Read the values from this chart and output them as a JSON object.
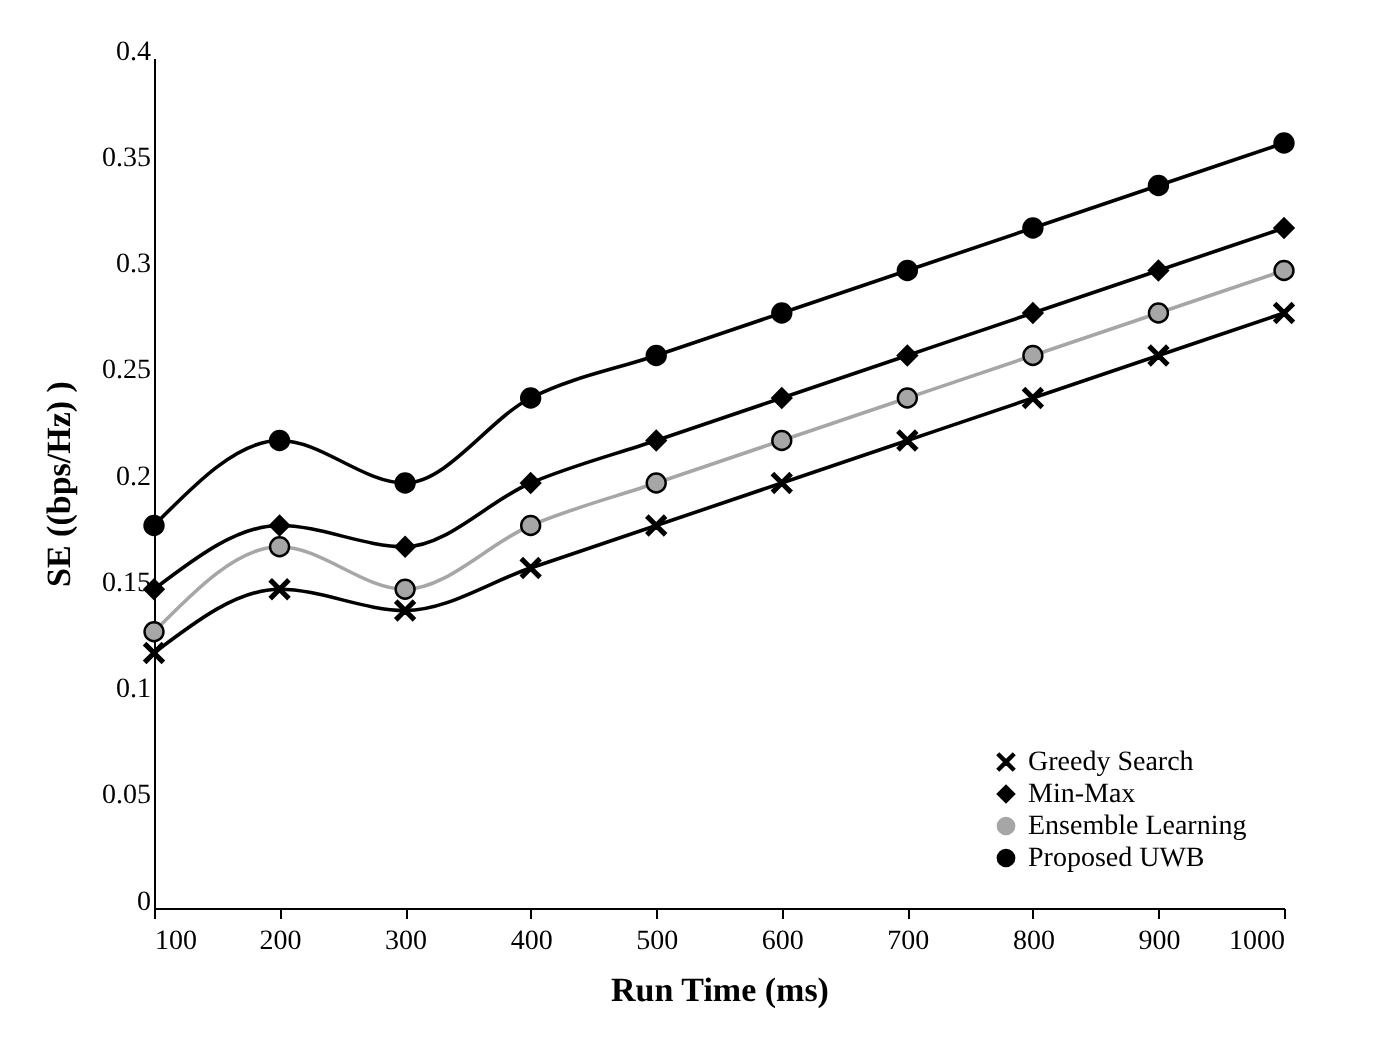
{
  "chart_data": {
    "type": "line",
    "xlabel": "Run Time (ms)",
    "ylabel": "SE ((bps/Hz) )",
    "categories": [
      "100",
      "200",
      "300",
      "400",
      "500",
      "600",
      "700",
      "800",
      "900",
      "1000"
    ],
    "series": [
      {
        "name": "Greedy Search",
        "color": "#000000",
        "marker": "cross",
        "values": [
          0.12,
          0.15,
          0.14,
          0.16,
          0.18,
          0.2,
          0.22,
          0.24,
          0.26,
          0.28
        ]
      },
      {
        "name": "Min-Max",
        "color": "#000000",
        "marker": "diamond",
        "values": [
          0.15,
          0.18,
          0.17,
          0.2,
          0.22,
          0.24,
          0.26,
          0.28,
          0.3,
          0.32
        ]
      },
      {
        "name": "Ensemble Learning",
        "color": "#a6a6a6",
        "marker": "circle",
        "values": [
          0.13,
          0.17,
          0.15,
          0.18,
          0.2,
          0.22,
          0.24,
          0.26,
          0.28,
          0.3
        ]
      },
      {
        "name": "Proposed UWB",
        "color": "#000000",
        "marker": "circle",
        "values": [
          0.18,
          0.22,
          0.2,
          0.24,
          0.26,
          0.28,
          0.3,
          0.32,
          0.34,
          0.36
        ]
      }
    ],
    "ylim": [
      0,
      0.4
    ],
    "yticks": [
      0,
      0.05,
      0.1,
      0.15,
      0.2,
      0.25,
      0.3,
      0.35,
      0.4
    ],
    "grid": false,
    "legend": "bottom right",
    "line_style": "solid"
  }
}
